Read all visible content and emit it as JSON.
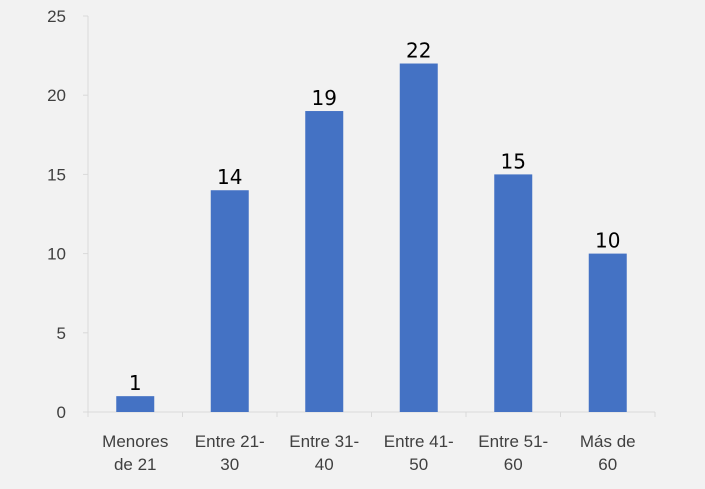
{
  "chart_data": {
    "type": "bar",
    "categories": [
      [
        "Menores",
        "de 21"
      ],
      [
        "Entre 21-",
        "30"
      ],
      [
        "Entre 31-",
        "40"
      ],
      [
        "Entre 41-",
        "50"
      ],
      [
        "Entre 51-",
        "60"
      ],
      [
        "Más de",
        "60"
      ]
    ],
    "values": [
      1,
      14,
      19,
      22,
      15,
      10
    ],
    "data_labels": [
      "1",
      "14",
      "19",
      "22",
      "15",
      "10"
    ],
    "ylim": [
      0,
      25
    ],
    "yticks": [
      0,
      5,
      10,
      15,
      20,
      25
    ],
    "title": "",
    "xlabel": "",
    "ylabel": "",
    "grid": false,
    "legend": "none",
    "bar_color": "#4472c4",
    "axis_color": "#d9d9d9",
    "label_color": "#404040",
    "background": "#f2f2f2"
  }
}
